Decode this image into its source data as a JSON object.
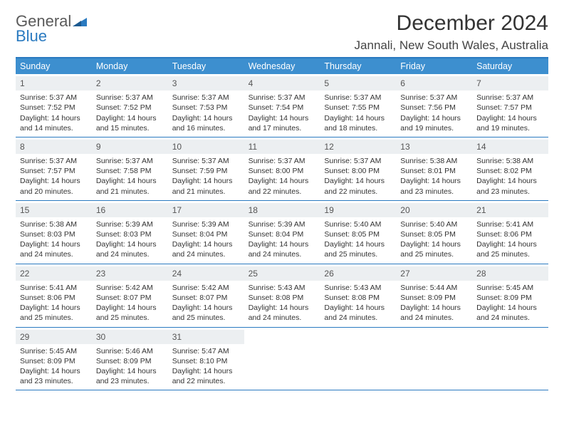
{
  "logo": {
    "line1": "General",
    "line2": "Blue"
  },
  "month_title": "December 2024",
  "location": "Jannali, New South Wales, Australia",
  "colors": {
    "header_bg": "#3d8fcf",
    "border": "#2a7ac0",
    "daynum_bg": "#eceff1",
    "text": "#333333"
  },
  "weekdays": [
    "Sunday",
    "Monday",
    "Tuesday",
    "Wednesday",
    "Thursday",
    "Friday",
    "Saturday"
  ],
  "weeks": [
    [
      {
        "n": "1",
        "sr": "5:37 AM",
        "ss": "7:52 PM",
        "dh": "14",
        "dm": "14"
      },
      {
        "n": "2",
        "sr": "5:37 AM",
        "ss": "7:52 PM",
        "dh": "14",
        "dm": "15"
      },
      {
        "n": "3",
        "sr": "5:37 AM",
        "ss": "7:53 PM",
        "dh": "14",
        "dm": "16"
      },
      {
        "n": "4",
        "sr": "5:37 AM",
        "ss": "7:54 PM",
        "dh": "14",
        "dm": "17"
      },
      {
        "n": "5",
        "sr": "5:37 AM",
        "ss": "7:55 PM",
        "dh": "14",
        "dm": "18"
      },
      {
        "n": "6",
        "sr": "5:37 AM",
        "ss": "7:56 PM",
        "dh": "14",
        "dm": "19"
      },
      {
        "n": "7",
        "sr": "5:37 AM",
        "ss": "7:57 PM",
        "dh": "14",
        "dm": "19"
      }
    ],
    [
      {
        "n": "8",
        "sr": "5:37 AM",
        "ss": "7:57 PM",
        "dh": "14",
        "dm": "20"
      },
      {
        "n": "9",
        "sr": "5:37 AM",
        "ss": "7:58 PM",
        "dh": "14",
        "dm": "21"
      },
      {
        "n": "10",
        "sr": "5:37 AM",
        "ss": "7:59 PM",
        "dh": "14",
        "dm": "21"
      },
      {
        "n": "11",
        "sr": "5:37 AM",
        "ss": "8:00 PM",
        "dh": "14",
        "dm": "22"
      },
      {
        "n": "12",
        "sr": "5:37 AM",
        "ss": "8:00 PM",
        "dh": "14",
        "dm": "22"
      },
      {
        "n": "13",
        "sr": "5:38 AM",
        "ss": "8:01 PM",
        "dh": "14",
        "dm": "23"
      },
      {
        "n": "14",
        "sr": "5:38 AM",
        "ss": "8:02 PM",
        "dh": "14",
        "dm": "23"
      }
    ],
    [
      {
        "n": "15",
        "sr": "5:38 AM",
        "ss": "8:03 PM",
        "dh": "14",
        "dm": "24"
      },
      {
        "n": "16",
        "sr": "5:39 AM",
        "ss": "8:03 PM",
        "dh": "14",
        "dm": "24"
      },
      {
        "n": "17",
        "sr": "5:39 AM",
        "ss": "8:04 PM",
        "dh": "14",
        "dm": "24"
      },
      {
        "n": "18",
        "sr": "5:39 AM",
        "ss": "8:04 PM",
        "dh": "14",
        "dm": "24"
      },
      {
        "n": "19",
        "sr": "5:40 AM",
        "ss": "8:05 PM",
        "dh": "14",
        "dm": "25"
      },
      {
        "n": "20",
        "sr": "5:40 AM",
        "ss": "8:05 PM",
        "dh": "14",
        "dm": "25"
      },
      {
        "n": "21",
        "sr": "5:41 AM",
        "ss": "8:06 PM",
        "dh": "14",
        "dm": "25"
      }
    ],
    [
      {
        "n": "22",
        "sr": "5:41 AM",
        "ss": "8:06 PM",
        "dh": "14",
        "dm": "25"
      },
      {
        "n": "23",
        "sr": "5:42 AM",
        "ss": "8:07 PM",
        "dh": "14",
        "dm": "25"
      },
      {
        "n": "24",
        "sr": "5:42 AM",
        "ss": "8:07 PM",
        "dh": "14",
        "dm": "25"
      },
      {
        "n": "25",
        "sr": "5:43 AM",
        "ss": "8:08 PM",
        "dh": "14",
        "dm": "24"
      },
      {
        "n": "26",
        "sr": "5:43 AM",
        "ss": "8:08 PM",
        "dh": "14",
        "dm": "24"
      },
      {
        "n": "27",
        "sr": "5:44 AM",
        "ss": "8:09 PM",
        "dh": "14",
        "dm": "24"
      },
      {
        "n": "28",
        "sr": "5:45 AM",
        "ss": "8:09 PM",
        "dh": "14",
        "dm": "24"
      }
    ],
    [
      {
        "n": "29",
        "sr": "5:45 AM",
        "ss": "8:09 PM",
        "dh": "14",
        "dm": "23"
      },
      {
        "n": "30",
        "sr": "5:46 AM",
        "ss": "8:09 PM",
        "dh": "14",
        "dm": "23"
      },
      {
        "n": "31",
        "sr": "5:47 AM",
        "ss": "8:10 PM",
        "dh": "14",
        "dm": "22"
      },
      null,
      null,
      null,
      null
    ]
  ],
  "labels": {
    "sunrise": "Sunrise:",
    "sunset": "Sunset:",
    "daylight_prefix": "Daylight:",
    "hours_word": "hours",
    "and_word": "and",
    "minutes_word": "minutes."
  }
}
